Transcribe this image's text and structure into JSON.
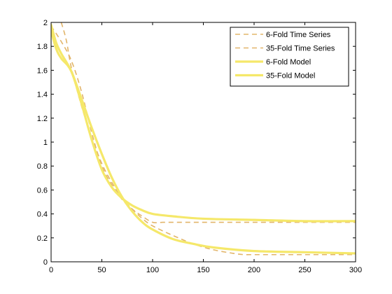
{
  "chart_data": {
    "type": "line",
    "title": "",
    "xlabel": "",
    "ylabel": "",
    "xlim": [
      0,
      300
    ],
    "ylim": [
      0,
      2
    ],
    "xticks": [
      0,
      50,
      100,
      150,
      200,
      250,
      300
    ],
    "yticks": [
      0,
      0.2,
      0.4,
      0.6,
      0.8,
      1,
      1.2,
      1.4,
      1.6,
      1.8,
      2
    ],
    "ytick_labels": [
      "0",
      "0.2",
      "0.4",
      "0.6",
      "0.8",
      "1",
      "1.2",
      "1.4",
      "1.6",
      "1.8",
      "2"
    ],
    "grid": false,
    "legend_position": "top-right",
    "series": [
      {
        "name": "6-Fold Time Series",
        "style": "dashed",
        "color": "#e2b56a",
        "x": [
          0,
          10,
          20,
          30,
          40,
          50,
          60,
          70,
          80,
          90,
          100,
          110,
          120,
          150,
          200,
          250,
          300
        ],
        "y": [
          1.97,
          1.84,
          1.68,
          1.42,
          1.08,
          0.8,
          0.64,
          0.52,
          0.44,
          0.38,
          0.33,
          0.33,
          0.33,
          0.33,
          0.33,
          0.33,
          0.33
        ]
      },
      {
        "name": "35-Fold Time Series",
        "style": "dashed",
        "color": "#e2b56a",
        "x": [
          10,
          15,
          20,
          30,
          40,
          50,
          60,
          70,
          80,
          90,
          100,
          120,
          140,
          160,
          180,
          190,
          200,
          250,
          300
        ],
        "y": [
          2.0,
          1.85,
          1.62,
          1.3,
          1.04,
          0.82,
          0.66,
          0.53,
          0.44,
          0.36,
          0.3,
          0.22,
          0.15,
          0.1,
          0.07,
          0.06,
          0.06,
          0.06,
          0.06
        ]
      },
      {
        "name": "6-Fold Model",
        "style": "solid",
        "color": "#f5e86a",
        "x": [
          0,
          5,
          10,
          20,
          30,
          40,
          50,
          60,
          70,
          80,
          90,
          100,
          120,
          150,
          200,
          250,
          300
        ],
        "y": [
          1.93,
          1.78,
          1.7,
          1.59,
          1.32,
          1.02,
          0.77,
          0.62,
          0.53,
          0.47,
          0.43,
          0.4,
          0.38,
          0.36,
          0.35,
          0.34,
          0.34
        ]
      },
      {
        "name": "35-Fold Model",
        "style": "solid",
        "color": "#f5e86a",
        "x": [
          0,
          5,
          10,
          20,
          30,
          40,
          50,
          60,
          70,
          80,
          90,
          100,
          120,
          140,
          160,
          200,
          250,
          300
        ],
        "y": [
          1.98,
          1.83,
          1.74,
          1.59,
          1.36,
          1.12,
          0.9,
          0.7,
          0.54,
          0.42,
          0.33,
          0.27,
          0.19,
          0.15,
          0.12,
          0.09,
          0.08,
          0.07
        ]
      }
    ]
  }
}
